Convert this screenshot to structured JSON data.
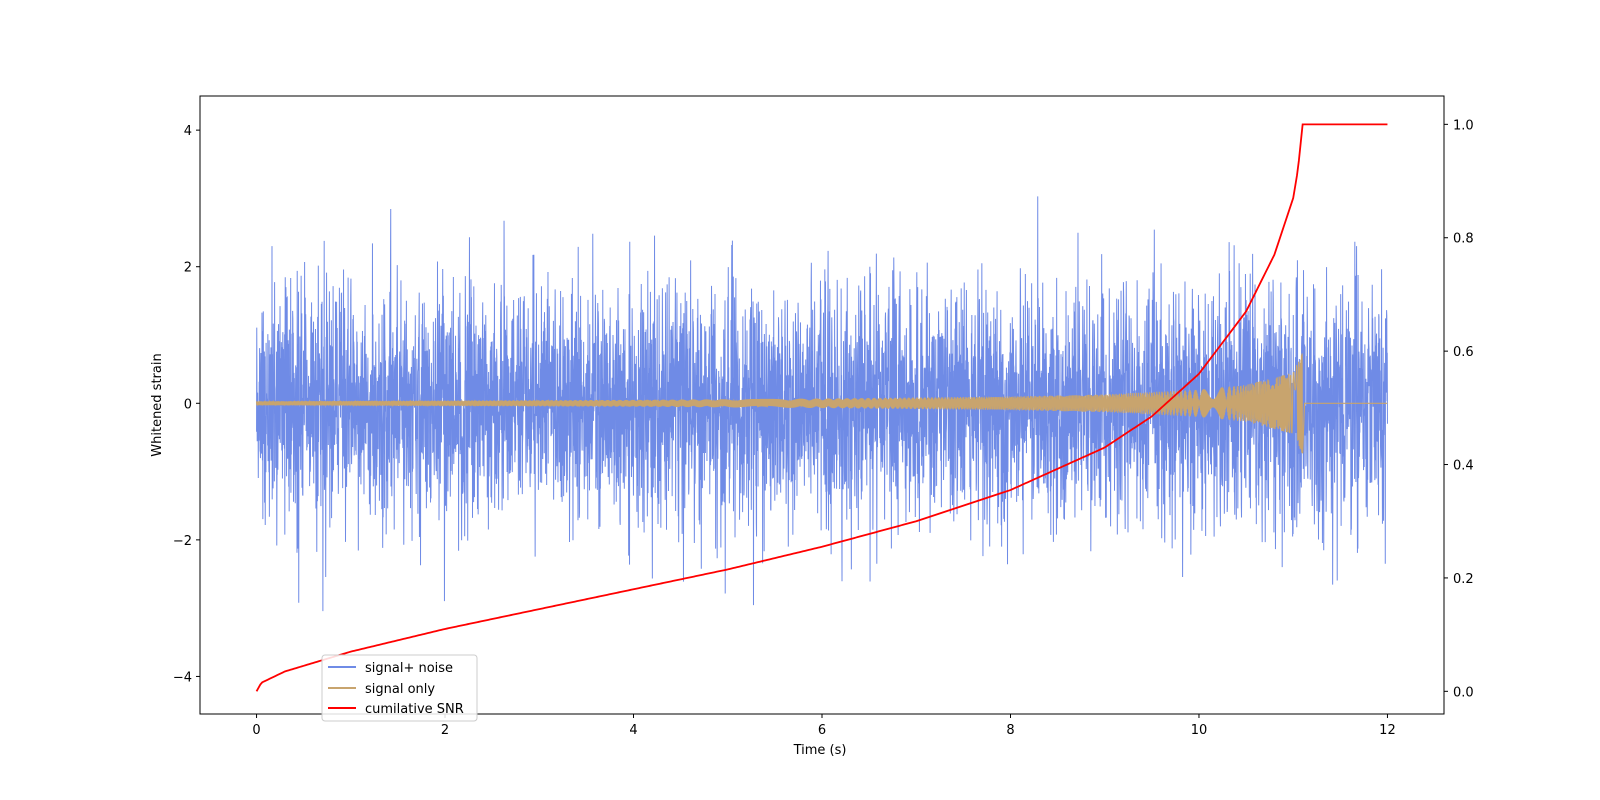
{
  "chart_data": {
    "type": "line",
    "title": "",
    "xlabel": "Time (s)",
    "ylabel": "Whitened strain",
    "y2label": "",
    "xlim": [
      -0.6,
      12.6
    ],
    "ylim": [
      -4.55,
      4.5
    ],
    "y2lim": [
      -0.04,
      1.05
    ],
    "xticks": [
      0,
      2,
      4,
      6,
      8,
      10,
      12
    ],
    "yticks": [
      -4,
      -2,
      0,
      2,
      4
    ],
    "y2ticks": [
      0.0,
      0.2,
      0.4,
      0.6,
      0.8,
      1.0
    ],
    "xtick_labels": [
      "0",
      "2",
      "4",
      "6",
      "8",
      "10",
      "12"
    ],
    "ytick_labels": [
      "−4",
      "−2",
      "0",
      "2",
      "4"
    ],
    "y2tick_labels": [
      "0.0",
      "0.2",
      "0.4",
      "0.6",
      "0.8",
      "1.0"
    ],
    "grid": false,
    "legend_position": "lower-left",
    "merger_time": 11.1,
    "t_end": 12.0,
    "series": [
      {
        "name": "signal+ noise",
        "color": "#6f8be6",
        "axis": "left",
        "kind": "noise",
        "sigma": 0.85,
        "envelope_points": [
          [
            0,
            1.0
          ],
          [
            12,
            1.0
          ]
        ]
      },
      {
        "name": "signal only",
        "color": "#c8a46e",
        "axis": "left",
        "kind": "chirp",
        "envelope_points": [
          [
            0,
            0.03
          ],
          [
            2,
            0.04
          ],
          [
            4,
            0.05
          ],
          [
            6,
            0.07
          ],
          [
            8,
            0.1
          ],
          [
            9,
            0.13
          ],
          [
            10,
            0.2
          ],
          [
            10.5,
            0.27
          ],
          [
            11,
            0.45
          ],
          [
            11.1,
            0.75
          ],
          [
            11.12,
            0.0
          ],
          [
            12,
            0.0
          ]
        ]
      },
      {
        "name": "cumilative SNR",
        "color": "#ff0000",
        "axis": "right",
        "kind": "line",
        "points": [
          [
            0,
            0.0
          ],
          [
            0.05,
            0.015
          ],
          [
            0.3,
            0.035
          ],
          [
            1,
            0.07
          ],
          [
            2,
            0.11
          ],
          [
            3,
            0.145
          ],
          [
            4,
            0.18
          ],
          [
            5,
            0.215
          ],
          [
            6,
            0.255
          ],
          [
            7,
            0.3
          ],
          [
            8,
            0.355
          ],
          [
            9,
            0.43
          ],
          [
            9.5,
            0.485
          ],
          [
            10,
            0.56
          ],
          [
            10.5,
            0.67
          ],
          [
            10.8,
            0.77
          ],
          [
            11,
            0.87
          ],
          [
            11.05,
            0.92
          ],
          [
            11.1,
            1.0
          ],
          [
            12,
            1.0
          ]
        ]
      }
    ]
  }
}
